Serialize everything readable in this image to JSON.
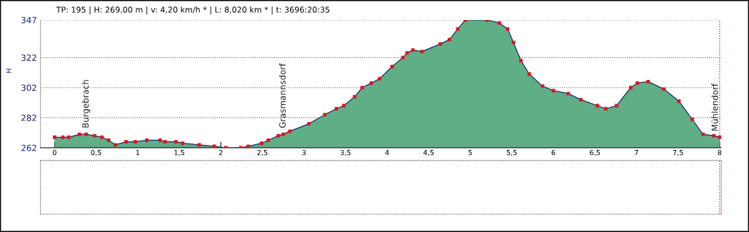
{
  "chart_data": {
    "type": "area",
    "title": "TP: 195 | H: 269,00 m | v: 4,20 km/h * | L: 8,020 km * | t: 3696:20:35",
    "ylabel": "H",
    "x": [
      0,
      0.1,
      0.17,
      0.3,
      0.38,
      0.48,
      0.57,
      0.65,
      0.73,
      0.86,
      0.97,
      1.11,
      1.27,
      1.33,
      1.46,
      1.54,
      1.74,
      1.92,
      2.06,
      2.24,
      2.33,
      2.49,
      2.57,
      2.69,
      2.75,
      2.83,
      3.06,
      3.25,
      3.39,
      3.48,
      3.61,
      3.7,
      3.81,
      3.91,
      4.06,
      4.19,
      4.24,
      4.31,
      4.42,
      4.64,
      4.75,
      4.85,
      4.94,
      5.2,
      5.35,
      5.45,
      5.52,
      5.61,
      5.71,
      5.87,
      6.0,
      6.18,
      6.33,
      6.53,
      6.63,
      6.76,
      6.93,
      7.01,
      7.14,
      7.33,
      7.51,
      7.67,
      7.8,
      7.93,
      8.0
    ],
    "series": [
      {
        "color": "#5fae86",
        "values": [
          269,
          269,
          269,
          271,
          271,
          270,
          269,
          267,
          264,
          266,
          266,
          267,
          267,
          266,
          266,
          265,
          264,
          263,
          262,
          262,
          263,
          265,
          267,
          270,
          271,
          273,
          278,
          284,
          288,
          290,
          296,
          302,
          305,
          308,
          316,
          322,
          325,
          327,
          326,
          331,
          334,
          341,
          347,
          347,
          345,
          341,
          332,
          320,
          311,
          303,
          300,
          298,
          294,
          290,
          288,
          290,
          302,
          305,
          306,
          301,
          293,
          281,
          271,
          270,
          269
        ]
      }
    ],
    "xlim": [
      -0.17,
      8.02
    ],
    "ylim": [
      262,
      347
    ],
    "xticks": [
      0,
      {
        "value": 0.5,
        "label": "0,5"
      },
      1,
      {
        "value": 1.5,
        "label": "1,5"
      },
      2,
      {
        "value": 2.5,
        "label": "2,5"
      },
      3,
      {
        "value": 3.5,
        "label": "3,5"
      },
      4,
      {
        "value": 4.5,
        "label": "4,5"
      },
      5,
      {
        "value": 5.5,
        "label": "5,5"
      },
      6,
      {
        "value": 6.5,
        "label": "6,5"
      },
      7,
      {
        "value": 7.5,
        "label": "7,5"
      },
      8
    ],
    "yticks": [
      262,
      282,
      302,
      322,
      347
    ],
    "ref_lines": [
      {
        "axis": "x",
        "value": 8,
        "color": "#e00000",
        "line_style": "dotted"
      }
    ],
    "annotations": [
      {
        "text": "Burgebrach",
        "x": 0.38,
        "y": 271
      },
      {
        "text": "Grasmannsdorf",
        "x": 2.75,
        "y": 271
      },
      {
        "text": "Mühlendorf",
        "x": 8,
        "y": 269
      }
    ],
    "grid": "y",
    "marker": "square",
    "line_style": "solid"
  }
}
